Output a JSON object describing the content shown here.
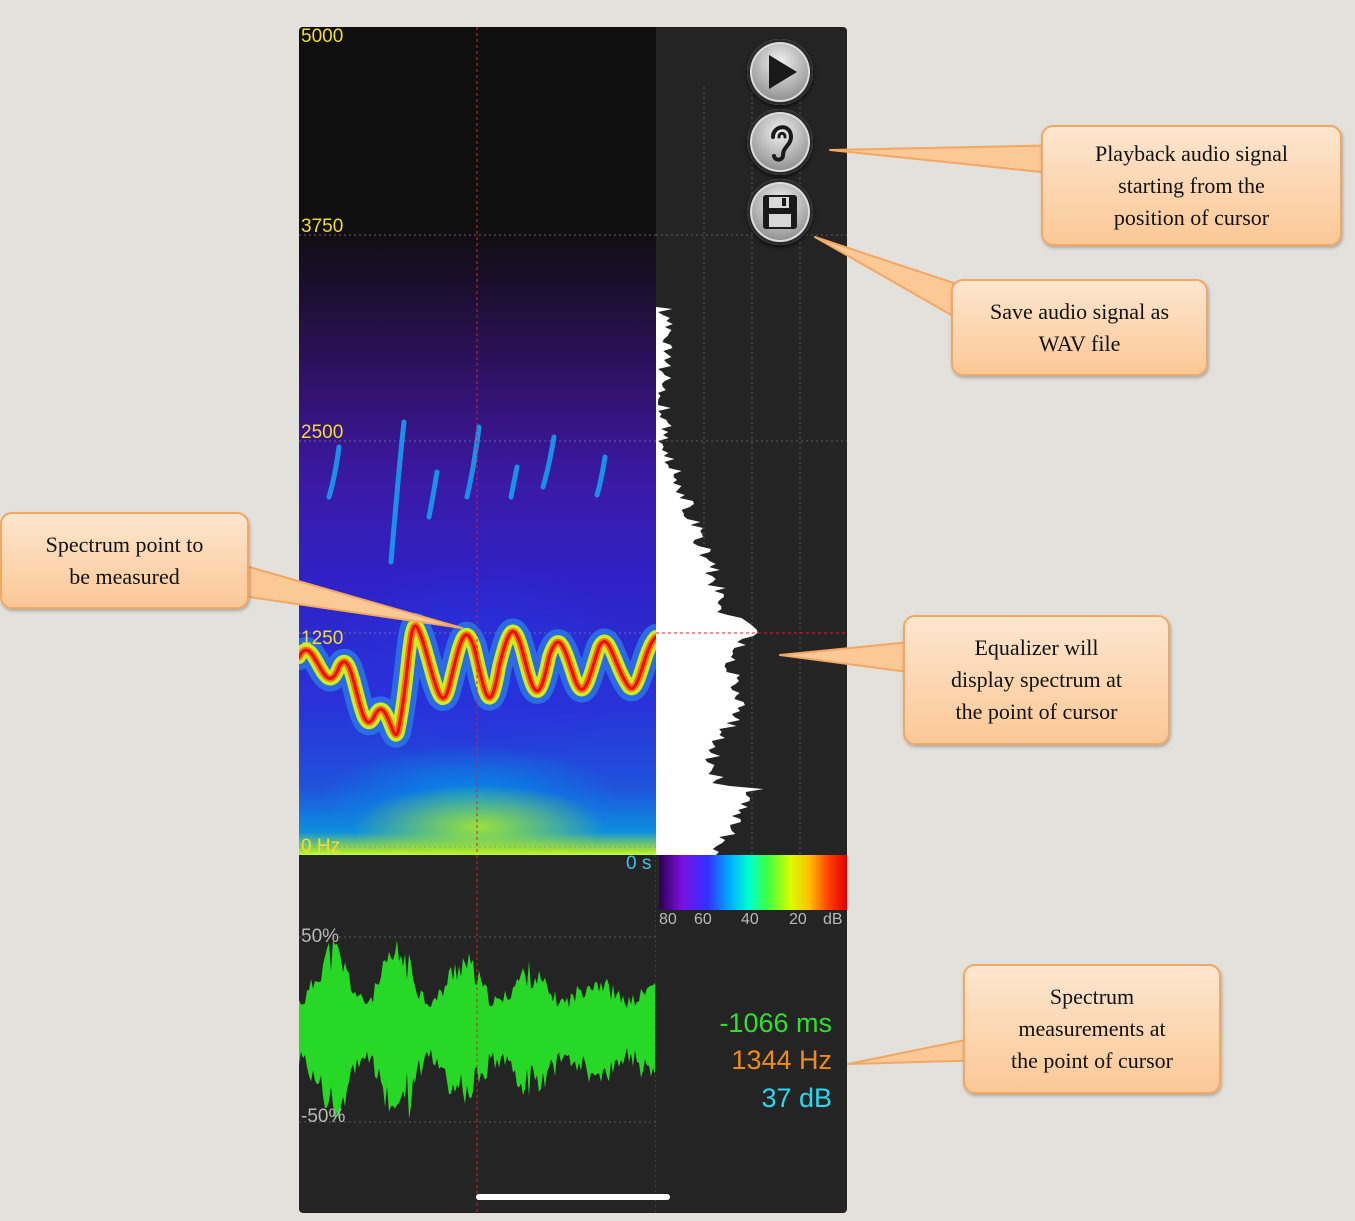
{
  "spectrogram": {
    "frequency_labels": [
      "5000",
      "3750",
      "2500",
      "1250",
      "0 Hz"
    ],
    "time_label": "0 s"
  },
  "colorbar": {
    "db_labels": [
      "80",
      "60",
      "40",
      "20",
      "dB"
    ]
  },
  "waveform": {
    "amplitude_labels": [
      "50%",
      "-50%"
    ]
  },
  "measurements": {
    "time": "-1066 ms",
    "frequency": "1344 Hz",
    "level": "37 dB",
    "colors": {
      "time": "#2fe02f",
      "frequency": "#f28a18",
      "level": "#2ad8f0"
    }
  },
  "controls": [
    {
      "name": "play",
      "icon": "play-icon"
    },
    {
      "name": "listen",
      "icon": "ear-icon"
    },
    {
      "name": "save",
      "icon": "floppy-disk-icon"
    }
  ],
  "callouts": {
    "playback": "Playback audio signal\nstarting from the\nposition of cursor",
    "save": "Save audio signal as\nWAV file",
    "spectrum_point": "Spectrum point to\nbe measured",
    "equalizer": "Equalizer will\ndisplay spectrum at\nthe point of cursor",
    "measurements": "Spectrum\nmeasurements at\nthe point of cursor"
  }
}
